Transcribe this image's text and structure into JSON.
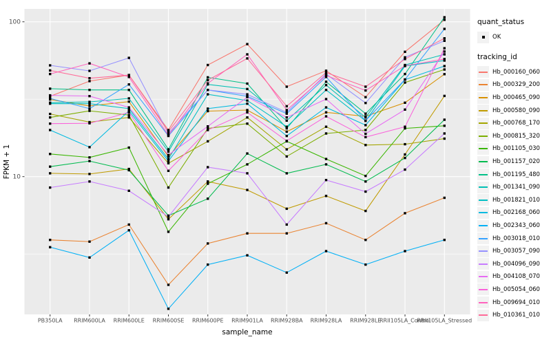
{
  "chart_data": {
    "type": "line",
    "title": "",
    "xlabel": "sample_name",
    "ylabel": "FPKM + 1",
    "yscale": "log10",
    "ylim": [
      1.3,
      121
    ],
    "y_major_ticks": [
      100,
      10
    ],
    "y_tick_labels": [
      "100",
      "10"
    ],
    "y_minor_gridlines": [
      31.623,
      3.1623
    ],
    "grid": true,
    "panel_bg": "#EBEBEB",
    "grid_color": "#FFFFFF",
    "tick_color": "#333333",
    "tick_label_color": "#4D4D4D",
    "point_color": "#000000",
    "legend_position": "right",
    "categories": [
      "PB350LA",
      "RRIM600LA",
      "RRIM600LE",
      "RRIM600SE",
      "RRIM600PE",
      "RRIM901LA",
      "RRIM928BA",
      "RRIM928LA",
      "RRIM928LE",
      "RRII105LA_Control",
      "RRII105LA_Stressed"
    ],
    "legend": {
      "quant_status": {
        "title": "quant_status",
        "items": [
          {
            "label": "OK",
            "marker": "black-point"
          }
        ]
      },
      "tracking_id": {
        "title": "tracking_id"
      }
    },
    "series": [
      {
        "name": "Hb_000160_060",
        "color": "#F8766D",
        "values": [
          33.0,
          41.4,
          45.3,
          20.0,
          52.6,
          71.8,
          38.1,
          48.3,
          32.6,
          64.0,
          103.0
        ]
      },
      {
        "name": "Hb_000329_200",
        "color": "#EA8331",
        "values": [
          3.9,
          3.8,
          4.9,
          2.0,
          3.7,
          4.3,
          4.3,
          5.0,
          3.9,
          5.8,
          7.3
        ]
      },
      {
        "name": "Hb_000465_090",
        "color": "#D89000",
        "values": [
          31.5,
          28.6,
          30.5,
          13.5,
          26.5,
          26.9,
          19.5,
          26.0,
          24.5,
          30.0,
          45.9
        ]
      },
      {
        "name": "Hb_000580_090",
        "color": "#C09B00",
        "values": [
          10.5,
          10.4,
          11.2,
          5.3,
          9.3,
          8.2,
          6.2,
          7.5,
          6.0,
          13.9,
          33.2
        ]
      },
      {
        "name": "Hb_000768_170",
        "color": "#A3A500",
        "values": [
          25.4,
          22.5,
          24.1,
          12.2,
          16.9,
          24.1,
          15.0,
          21.0,
          16.0,
          16.2,
          17.6
        ]
      },
      {
        "name": "Hb_000815_320",
        "color": "#7CAE00",
        "values": [
          24.1,
          26.6,
          25.0,
          8.5,
          20.5,
          22.0,
          13.5,
          19.0,
          20.0,
          40.5,
          49.2
        ]
      },
      {
        "name": "Hb_001105_030",
        "color": "#39B600",
        "values": [
          14.0,
          13.3,
          15.4,
          4.4,
          9.0,
          12.0,
          16.9,
          13.0,
          10.1,
          20.5,
          21.3
        ]
      },
      {
        "name": "Hb_001157_020",
        "color": "#00BB4E",
        "values": [
          11.6,
          12.6,
          11.0,
          5.6,
          7.2,
          14.1,
          10.5,
          12.0,
          9.3,
          13.2,
          23.3
        ]
      },
      {
        "name": "Hb_001195_480",
        "color": "#00C087",
        "values": [
          37.0,
          36.3,
          36.3,
          15.0,
          43.8,
          39.9,
          20.5,
          41.0,
          25.5,
          46.0,
          107.0
        ]
      },
      {
        "name": "Hb_001341_090",
        "color": "#00C0B4",
        "values": [
          30.0,
          30.4,
          32.0,
          14.5,
          39.4,
          36.8,
          23.0,
          39.0,
          24.1,
          52.6,
          61.6
        ]
      },
      {
        "name": "Hb_001821_010",
        "color": "#00BFC4",
        "values": [
          29.6,
          29.6,
          27.5,
          13.0,
          34.0,
          31.0,
          21.0,
          36.3,
          22.9,
          51.8,
          56.2
        ]
      },
      {
        "name": "Hb_002168_060",
        "color": "#00BAE0",
        "values": [
          20.0,
          15.5,
          26.6,
          12.6,
          27.5,
          29.6,
          18.3,
          28.0,
          21.5,
          42.3,
          51.8
        ]
      },
      {
        "name": "Hb_002343_060",
        "color": "#00B0F6",
        "values": [
          3.5,
          3.0,
          4.5,
          1.4,
          2.7,
          3.1,
          2.4,
          3.3,
          2.7,
          3.3,
          3.9
        ]
      },
      {
        "name": "Hb_003018_010",
        "color": "#35A2FF",
        "values": [
          32.0,
          27.5,
          39.4,
          18.3,
          36.3,
          33.0,
          25.5,
          44.0,
          23.0,
          42.4,
          90.0
        ]
      },
      {
        "name": "Hb_003057_090",
        "color": "#9590FF",
        "values": [
          52.3,
          48.2,
          58.5,
          19.0,
          36.3,
          34.0,
          26.0,
          46.0,
          29.9,
          59.0,
          75.4
        ]
      },
      {
        "name": "Hb_004096_090",
        "color": "#C77CFF",
        "values": [
          8.5,
          9.3,
          8.1,
          5.5,
          11.5,
          10.5,
          4.9,
          9.5,
          8.0,
          11.1,
          19.0
        ]
      },
      {
        "name": "Hb_004108_070",
        "color": "#E76BF3",
        "values": [
          33.5,
          33.1,
          28.0,
          13.8,
          21.1,
          32.6,
          24.1,
          31.7,
          18.9,
          27.1,
          64.3
        ]
      },
      {
        "name": "Hb_005054_060",
        "color": "#FA62DB",
        "values": [
          22.0,
          22.1,
          26.0,
          10.9,
          20.0,
          26.0,
          17.0,
          24.5,
          18.0,
          21.0,
          67.5
        ]
      },
      {
        "name": "Hb_009694_010",
        "color": "#FF62BC",
        "values": [
          46.0,
          53.9,
          44.0,
          18.5,
          40.0,
          61.6,
          26.9,
          45.0,
          36.0,
          52.0,
          57.5
        ]
      },
      {
        "name": "Hb_010361_010",
        "color": "#FF6A98",
        "values": [
          48.5,
          43.2,
          45.3,
          19.5,
          42.0,
          58.0,
          28.5,
          47.0,
          38.1,
          57.5,
          78.2
        ]
      }
    ]
  }
}
